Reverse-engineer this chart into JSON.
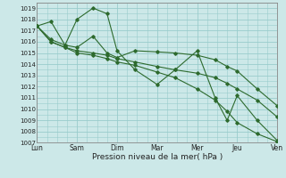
{
  "xlabel": "Pression niveau de la mer( hPa )",
  "background_color": "#cce8e8",
  "grid_color": "#99cccc",
  "line_color": "#2d6a2d",
  "xlim": [
    0,
    6
  ],
  "ylim": [
    1007,
    1019.5
  ],
  "yticks": [
    1007,
    1008,
    1009,
    1010,
    1011,
    1012,
    1013,
    1014,
    1015,
    1016,
    1017,
    1018,
    1019
  ],
  "x_labels": [
    "Lun",
    "Sam",
    "Dim",
    "Mar",
    "Mer",
    "Jeu",
    "Ven"
  ],
  "x_positions": [
    0,
    1,
    2,
    3,
    4,
    5,
    6
  ],
  "series": [
    [
      1017.4,
      1017.8,
      1015.7,
      1018.0,
      1019.0,
      1018.5,
      1015.2,
      1013.5,
      1012.2,
      1013.5,
      1015.2,
      1011.0,
      1009.0,
      1011.2,
      1009.0,
      1007.2
    ],
    [
      1017.4,
      1016.2,
      1015.7,
      1015.5,
      1016.5,
      1015.0,
      1014.6,
      1015.2,
      1015.1,
      1015.0,
      1014.8,
      1014.4,
      1013.8,
      1013.4,
      1011.8,
      1010.3
    ],
    [
      1017.4,
      1016.0,
      1015.5,
      1015.2,
      1015.0,
      1014.8,
      1014.5,
      1014.2,
      1013.8,
      1013.5,
      1013.2,
      1012.8,
      1012.3,
      1011.8,
      1010.8,
      1009.3
    ],
    [
      1017.4,
      1016.0,
      1015.5,
      1015.0,
      1014.8,
      1014.5,
      1014.2,
      1013.9,
      1013.3,
      1012.8,
      1011.8,
      1010.8,
      1009.8,
      1008.8,
      1007.8,
      1007.1
    ]
  ],
  "x_data": [
    0.0,
    0.35,
    0.7,
    1.0,
    1.4,
    1.75,
    2.0,
    2.45,
    3.0,
    3.45,
    4.0,
    4.45,
    4.75,
    5.0,
    5.5,
    6.0
  ]
}
